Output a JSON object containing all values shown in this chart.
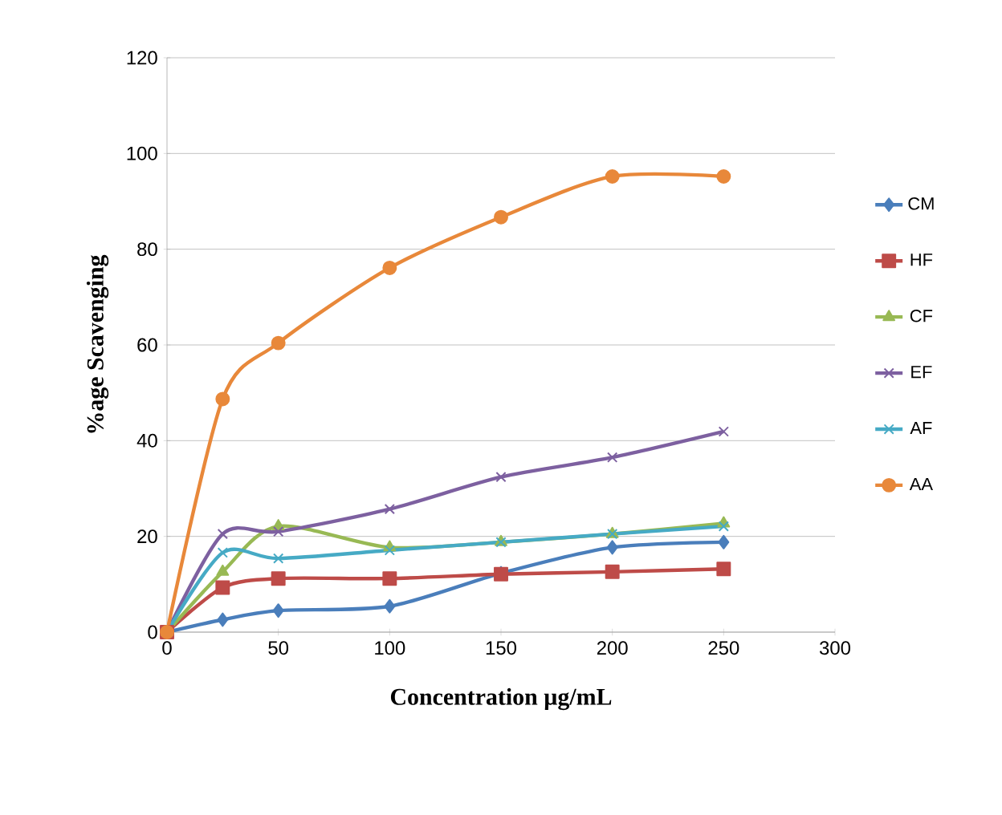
{
  "chart_data": {
    "type": "line",
    "xlabel": "Concentration µg/mL",
    "ylabel": "%age Scavenging",
    "x": [
      0,
      25,
      50,
      100,
      150,
      200,
      250
    ],
    "series": [
      {
        "name": "CM",
        "color": "#4a7ebb",
        "marker": "diamond",
        "values": [
          0,
          2.6,
          4.5,
          5.4,
          12.3,
          17.7,
          18.8
        ]
      },
      {
        "name": "HF",
        "color": "#be4b48",
        "marker": "square",
        "values": [
          0,
          9.3,
          11.2,
          11.2,
          12.1,
          12.6,
          13.2
        ]
      },
      {
        "name": "CF",
        "color": "#98b954",
        "marker": "triangle",
        "values": [
          0,
          12.6,
          22.1,
          17.7,
          18.8,
          20.5,
          22.7
        ]
      },
      {
        "name": "EF",
        "color": "#7d60a0",
        "marker": "cross",
        "values": [
          0,
          20.5,
          21,
          25.7,
          32.4,
          36.5,
          41.9
        ]
      },
      {
        "name": "AF",
        "color": "#46aac5",
        "marker": "cross",
        "values": [
          0,
          16.6,
          15.4,
          17.1,
          18.8,
          20.5,
          22.1
        ]
      },
      {
        "name": "AA",
        "color": "#e8883a",
        "marker": "circle",
        "values": [
          0,
          48.7,
          60.4,
          76.1,
          86.7,
          95.2,
          95.2
        ]
      }
    ],
    "xlim": [
      0,
      300
    ],
    "ylim": [
      0,
      120
    ],
    "xticks": [
      0,
      50,
      100,
      150,
      200,
      250,
      300
    ],
    "yticks": [
      0,
      20,
      40,
      60,
      80,
      100,
      120
    ],
    "grid": "y",
    "legend": "right",
    "line_style": "solid"
  }
}
